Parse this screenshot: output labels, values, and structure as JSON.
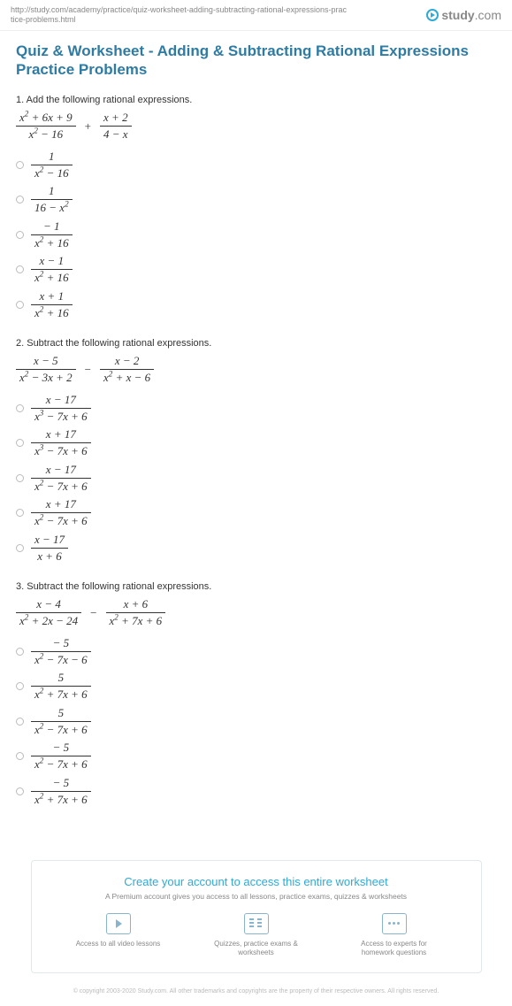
{
  "header": {
    "url": "http://study.com/academy/practice/quiz-worksheet-adding-subtracting-rational-expressions-practice-problems.html",
    "logo_brand": "study",
    "logo_suffix": ".com"
  },
  "title": "Quiz & Worksheet - Adding & Subtracting Rational Expressions Practice Problems",
  "questions": [
    {
      "prompt": "1. Add the following rational expressions.",
      "lhs": {
        "num": "x² + 6x + 9",
        "den": "x² − 16"
      },
      "op": "+",
      "rhs": {
        "num": "x + 2",
        "den": "4 − x"
      },
      "options": [
        {
          "num": "1",
          "den": "x² − 16"
        },
        {
          "num": "1",
          "den": "16 − x²"
        },
        {
          "num": "−1",
          "den": "x² + 16"
        },
        {
          "num": "x − 1",
          "den": "x² + 16"
        },
        {
          "num": "x + 1",
          "den": "x² + 16"
        }
      ]
    },
    {
      "prompt": "2. Subtract the following rational expressions.",
      "lhs": {
        "num": "x − 5",
        "den": "x² − 3x + 2"
      },
      "op": "−",
      "rhs": {
        "num": "x − 2",
        "den": "x² + x − 6"
      },
      "options": [
        {
          "num": "x − 17",
          "den": "x³ − 7x + 6"
        },
        {
          "num": "x + 17",
          "den": "x³ − 7x + 6"
        },
        {
          "num": "x − 17",
          "den": "x² − 7x + 6"
        },
        {
          "num": "x + 17",
          "den": "x² − 7x + 6"
        },
        {
          "num": "x − 17",
          "den": "x + 6"
        }
      ]
    },
    {
      "prompt": "3. Subtract the following rational expressions.",
      "lhs": {
        "num": "x − 4",
        "den": "x² + 2x − 24"
      },
      "op": "−",
      "rhs": {
        "num": "x + 6",
        "den": "x² + 7x + 6"
      },
      "options": [
        {
          "num": "−5",
          "den": "x² − 7x − 6"
        },
        {
          "num": "5",
          "den": "x² + 7x + 6"
        },
        {
          "num": "5",
          "den": "x² − 7x + 6"
        },
        {
          "num": "−5",
          "den": "x² − 7x + 6"
        },
        {
          "num": "−5",
          "den": "x² + 7x + 6"
        }
      ]
    }
  ],
  "cta": {
    "title": "Create your account to access this entire worksheet",
    "subtitle": "A Premium account gives you access to all lessons, practice exams, quizzes & worksheets",
    "items": [
      "Access to all video lessons",
      "Quizzes, practice exams & worksheets",
      "Access to experts for homework questions"
    ]
  },
  "copyright": "© copyright 2003-2020 Study.com. All other trademarks and copyrights are the property of their respective owners. All rights reserved."
}
